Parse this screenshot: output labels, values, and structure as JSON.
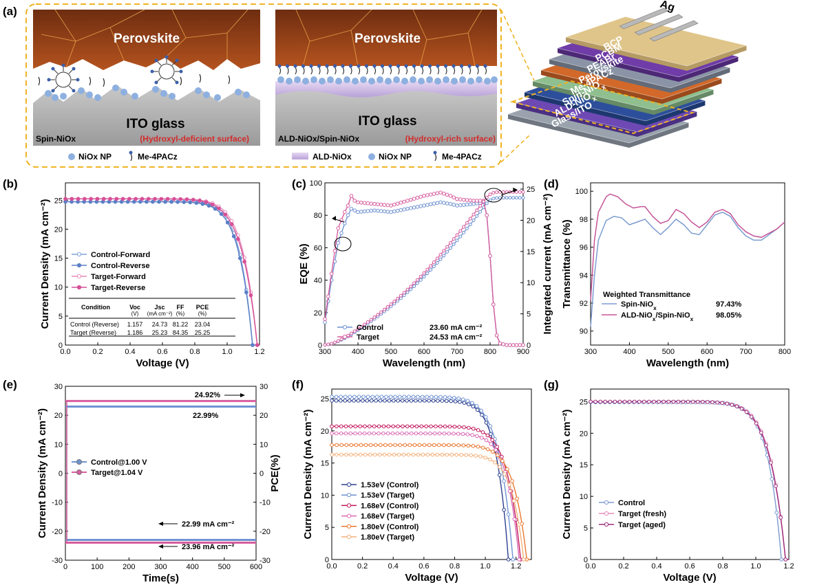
{
  "panels": {
    "a": "(a)",
    "b": "(b)",
    "c": "(c)",
    "d": "(d)",
    "e": "(e)",
    "f": "(f)",
    "g": "(g)"
  },
  "schematic": {
    "left": {
      "top_label": "Perovskite",
      "bottom_label": "ITO glass",
      "corner": "Spin-NiOx",
      "note": "(Hydroxyl-deficient surface)",
      "legend": [
        {
          "label": "NiOx NP",
          "icon": "circle-icon"
        },
        {
          "label": "Me-4PACz",
          "icon": "molecule-icon"
        }
      ]
    },
    "right": {
      "top_label": "Perovskite",
      "bottom_label": "ITO glass",
      "corner": "ALD-NiOx/Spin-NiOx",
      "note": "(Hydroxyl-rich surface)",
      "legend": [
        {
          "label": "ALD-NiOx",
          "icon": "ald-layer-icon"
        },
        {
          "label": "NiOx NP",
          "icon": "circle-icon"
        },
        {
          "label": "Me-4PACz",
          "icon": "molecule-icon"
        }
      ]
    },
    "stack_layers": [
      "Glass/ITO",
      "ALD-NiOx",
      "Spin-NiOx",
      "Me-4PACz",
      "Perovskite",
      "PEABr",
      "PCBM",
      "BCP"
    ],
    "electrode": "Ag",
    "colors": {
      "frame": "#f0b323",
      "perovskite": "#8a3f18",
      "ito": "#a9a9a9",
      "nio_np": "#8eb0e0",
      "ald": "#c8b4e0",
      "note": "#d42b2b"
    }
  },
  "chart_data": [
    {
      "id": "b",
      "type": "line",
      "xlabel": "Voltage (V)",
      "ylabel": "Current Density (mA cm⁻²)",
      "xlim": [
        0,
        1.2
      ],
      "ylim": [
        0,
        28
      ],
      "xticks": [
        0.0,
        0.2,
        0.4,
        0.6,
        0.8,
        1.0,
        1.2
      ],
      "yticks": [
        0,
        5,
        10,
        15,
        20,
        25
      ],
      "series": [
        {
          "name": "Control-Forward",
          "color": "#7fa2d6",
          "marker": "open",
          "jsc": 24.73,
          "voc": 1.157,
          "ff": 0.79
        },
        {
          "name": "Control-Reverse",
          "color": "#5b7fc7",
          "marker": "filled",
          "jsc": 24.73,
          "voc": 1.157,
          "ff": 0.8122
        },
        {
          "name": "Target-Forward",
          "color": "#e58ab8",
          "marker": "open",
          "jsc": 25.23,
          "voc": 1.186,
          "ff": 0.82
        },
        {
          "name": "Target-Reverse",
          "color": "#d64f97",
          "marker": "filled",
          "jsc": 25.23,
          "voc": 1.186,
          "ff": 0.8435
        }
      ],
      "table": {
        "headers": [
          [
            "Condition",
            ""
          ],
          [
            "Voc",
            "(V)"
          ],
          [
            "Jsc",
            "(mA cm⁻²)"
          ],
          [
            "FF",
            "(%)"
          ],
          [
            "PCE",
            "(%)"
          ]
        ],
        "rows": [
          [
            "Control (Reverse)",
            "1.157",
            "24.73",
            "81.22",
            "23.04"
          ],
          [
            "Target (Reverse)",
            "1.186",
            "25.23",
            "84.35",
            "25.25"
          ]
        ]
      }
    },
    {
      "id": "c",
      "type": "line",
      "xlabel": "Wavelength (nm)",
      "ylabel": "EQE (%)",
      "y2label": "Integrated current (mA cm⁻²)",
      "xlim": [
        300,
        900
      ],
      "ylim": [
        0,
        100
      ],
      "y2lim": [
        0,
        26
      ],
      "xticks": [
        300,
        400,
        500,
        600,
        700,
        800,
        900
      ],
      "yticks": [
        0,
        20,
        40,
        60,
        80,
        100
      ],
      "y2ticks": [
        0,
        5,
        10,
        15,
        20,
        25
      ],
      "series": [
        {
          "name": "Control",
          "legend_value": "23.60 mA cm⁻²",
          "color": "#6f92d2",
          "eqe": [
            [
              300,
              14
            ],
            [
              320,
              40
            ],
            [
              340,
              63
            ],
            [
              360,
              75
            ],
            [
              370,
              80
            ],
            [
              380,
              84
            ],
            [
              400,
              82
            ],
            [
              450,
              83
            ],
            [
              500,
              82
            ],
            [
              550,
              84
            ],
            [
              600,
              86
            ],
            [
              650,
              88
            ],
            [
              680,
              87
            ],
            [
              700,
              86
            ],
            [
              750,
              87
            ],
            [
              780,
              88
            ],
            [
              790,
              80
            ],
            [
              800,
              55
            ],
            [
              810,
              25
            ],
            [
              820,
              6
            ],
            [
              830,
              1
            ],
            [
              850,
              0
            ],
            [
              900,
              0
            ]
          ],
          "jsc_total": 23.6
        },
        {
          "name": "Target",
          "legend_value": "24.53 mA cm⁻²",
          "color": "#d85d9e",
          "eqe": [
            [
              300,
              16
            ],
            [
              320,
              44
            ],
            [
              340,
              72
            ],
            [
              360,
              82
            ],
            [
              370,
              86
            ],
            [
              380,
              92
            ],
            [
              390,
              89
            ],
            [
              400,
              88
            ],
            [
              450,
              87
            ],
            [
              500,
              86
            ],
            [
              550,
              89
            ],
            [
              600,
              92
            ],
            [
              650,
              94
            ],
            [
              680,
              92
            ],
            [
              700,
              90
            ],
            [
              750,
              89
            ],
            [
              780,
              89
            ],
            [
              790,
              80
            ],
            [
              800,
              55
            ],
            [
              810,
              25
            ],
            [
              820,
              6
            ],
            [
              830,
              1
            ],
            [
              850,
              0
            ],
            [
              900,
              0
            ]
          ],
          "jsc_total": 24.53
        }
      ]
    },
    {
      "id": "d",
      "type": "line",
      "xlabel": "Wavelength (nm)",
      "ylabel": "Transmittance (%)",
      "xlim": [
        300,
        800
      ],
      "ylim": [
        89,
        100.6
      ],
      "xticks": [
        300,
        400,
        500,
        600,
        700,
        800
      ],
      "yticks": [
        90,
        92,
        94,
        96,
        98,
        100
      ],
      "legend_title": "Weighted Transmittance",
      "series": [
        {
          "name": "Spin-NiOx",
          "legend_value": "97.43%",
          "color": "#7b9bd0",
          "points": [
            [
              300,
              90.3
            ],
            [
              310,
              94
            ],
            [
              320,
              96.5
            ],
            [
              340,
              97.9
            ],
            [
              360,
              98.2
            ],
            [
              380,
              98.1
            ],
            [
              400,
              97.6
            ],
            [
              420,
              97.8
            ],
            [
              440,
              98.0
            ],
            [
              460,
              97.4
            ],
            [
              480,
              96.9
            ],
            [
              500,
              97.4
            ],
            [
              520,
              98.0
            ],
            [
              540,
              97.6
            ],
            [
              560,
              97.0
            ],
            [
              580,
              96.9
            ],
            [
              600,
              97.6
            ],
            [
              620,
              98.3
            ],
            [
              640,
              98.5
            ],
            [
              660,
              98.2
            ],
            [
              680,
              97.4
            ],
            [
              700,
              96.8
            ],
            [
              720,
              96.5
            ],
            [
              740,
              96.5
            ],
            [
              760,
              96.9
            ],
            [
              780,
              97.3
            ],
            [
              800,
              97.8
            ]
          ]
        },
        {
          "name": "ALD-NiOx/Spin-NiOx",
          "legend_value": "98.05%",
          "color": "#c55497",
          "points": [
            [
              300,
              92.2
            ],
            [
              310,
              96.5
            ],
            [
              320,
              98.5
            ],
            [
              340,
              99.6
            ],
            [
              350,
              99.8
            ],
            [
              370,
              99.6
            ],
            [
              390,
              99.1
            ],
            [
              410,
              98.8
            ],
            [
              430,
              98.9
            ],
            [
              440,
              98.9
            ],
            [
              460,
              98.2
            ],
            [
              480,
              97.7
            ],
            [
              500,
              97.9
            ],
            [
              520,
              98.7
            ],
            [
              540,
              98.4
            ],
            [
              560,
              97.8
            ],
            [
              580,
              97.4
            ],
            [
              600,
              97.8
            ],
            [
              620,
              98.5
            ],
            [
              640,
              98.7
            ],
            [
              660,
              98.4
            ],
            [
              680,
              97.6
            ],
            [
              700,
              97.1
            ],
            [
              720,
              96.8
            ],
            [
              740,
              96.7
            ],
            [
              760,
              97.0
            ],
            [
              780,
              97.3
            ],
            [
              800,
              97.8
            ]
          ]
        }
      ]
    },
    {
      "id": "e",
      "type": "line",
      "xlabel": "Time(s)",
      "ylabel": "Current Density (mA cm⁻²)",
      "y2label": "PCE(%)",
      "xlim": [
        0,
        600
      ],
      "ylim": [
        -30,
        30
      ],
      "y2lim": [
        -30,
        30
      ],
      "xticks": [
        0,
        100,
        200,
        300,
        400,
        500,
        600
      ],
      "yticks": [
        -30,
        -20,
        -10,
        0,
        10,
        20,
        30
      ],
      "y2ticks": [
        -30,
        -20,
        -10,
        0,
        10,
        20,
        30
      ],
      "series": [
        {
          "name": "Control@1.00 V",
          "color": "#6f92d2",
          "pce": 22.99,
          "j": -22.99
        },
        {
          "name": "Target@1.04 V",
          "color": "#d85d9e",
          "pce": 24.92,
          "j": -23.96
        }
      ],
      "annotations": [
        "24.92%",
        "22.99%",
        "22.99 mA cm⁻²",
        "23.96 mA cm⁻²"
      ]
    },
    {
      "id": "f",
      "type": "line",
      "xlabel": "Voltage (V)",
      "ylabel": "Current Density (mA cm⁻²)",
      "xlim": [
        0,
        1.3
      ],
      "ylim": [
        0,
        26.5
      ],
      "xticks": [
        0.0,
        0.2,
        0.4,
        0.6,
        0.8,
        1.0,
        1.2
      ],
      "yticks": [
        0,
        5,
        10,
        15,
        20,
        25
      ],
      "series": [
        {
          "name": "1.53eV (Control)",
          "color": "#2b3f8f",
          "marker": "open",
          "jsc": 24.7,
          "voc": 1.15,
          "ff": 0.78
        },
        {
          "name": "1.53eV (Target)",
          "color": "#6f92d2",
          "marker": "open",
          "jsc": 25.3,
          "voc": 1.18,
          "ff": 0.83
        },
        {
          "name": "1.68eV (Control)",
          "color": "#c2185b",
          "marker": "open",
          "jsc": 20.7,
          "voc": 1.23,
          "ff": 0.8
        },
        {
          "name": "1.68eV (Target)",
          "color": "#d968b4",
          "marker": "open",
          "jsc": 19.6,
          "voc": 1.22,
          "ff": 0.77
        },
        {
          "name": "1.80eV (Control)",
          "color": "#e8772e",
          "marker": "open",
          "jsc": 17.8,
          "voc": 1.27,
          "ff": 0.78
        },
        {
          "name": "1.80eV (Target)",
          "color": "#f3b07a",
          "marker": "open",
          "jsc": 16.3,
          "voc": 1.25,
          "ff": 0.75
        }
      ]
    },
    {
      "id": "g",
      "type": "line",
      "xlabel": "Voltage (V)",
      "ylabel": "Current Density (mA cm⁻²)",
      "xlim": [
        0,
        1.2
      ],
      "ylim": [
        0,
        27
      ],
      "xticks": [
        0.0,
        0.2,
        0.4,
        0.6,
        0.8,
        1.0,
        1.2
      ],
      "yticks": [
        0,
        5,
        10,
        15,
        20,
        25
      ],
      "series": [
        {
          "name": "Control",
          "color": "#7b9bd0",
          "marker": "open",
          "jsc": 24.9,
          "voc": 1.155,
          "ff": 0.8
        },
        {
          "name": "Target (fresh)",
          "color": "#e58ab8",
          "marker": "open",
          "jsc": 25.0,
          "voc": 1.18,
          "ff": 0.835
        },
        {
          "name": "Target (aged)",
          "color": "#9c2a7a",
          "marker": "open",
          "jsc": 25.0,
          "voc": 1.18,
          "ff": 0.845
        }
      ]
    }
  ]
}
